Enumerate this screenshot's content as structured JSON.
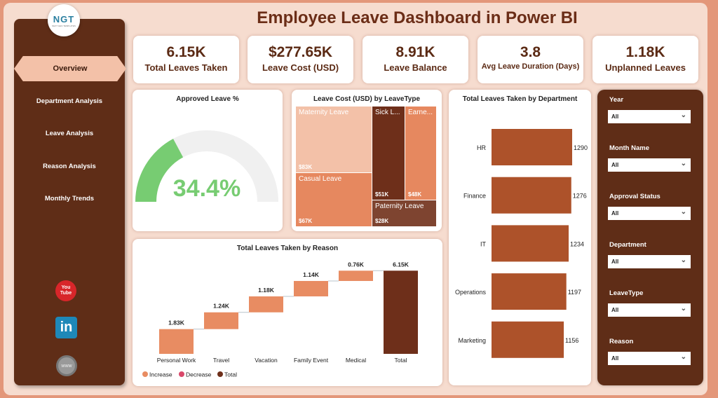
{
  "title": "Employee Leave Dashboard in Power BI",
  "logo": {
    "text": "NGT",
    "sub": "NEXT GEN TEMPLATES"
  },
  "nav": [
    {
      "label": "Overview",
      "active": true
    },
    {
      "label": "Department Analysis"
    },
    {
      "label": "Leave Analysis"
    },
    {
      "label": "Reason Analysis"
    },
    {
      "label": "Monthly Trends"
    }
  ],
  "social": {
    "youtube": "You Tube",
    "linkedin": "in",
    "web": "www"
  },
  "kpis": [
    {
      "value": "6.15K",
      "label": "Total Leaves Taken"
    },
    {
      "value": "$277.65K",
      "label": "Leave Cost (USD)"
    },
    {
      "value": "8.91K",
      "label": "Leave Balance"
    },
    {
      "value": "3.8",
      "label": "Avg Leave Duration (Days)"
    },
    {
      "value": "1.18K",
      "label": "Unplanned Leaves"
    }
  ],
  "gauge": {
    "title": "Approved Leave %",
    "value": 34.4,
    "label": "34.4%",
    "color": "#77cc72",
    "track": "#f0f0f0"
  },
  "treemap": {
    "title": "Leave Cost (USD) by LeaveType",
    "items": [
      {
        "name": "Maternity Leave",
        "value": "$83K",
        "color": "#f3c1a8"
      },
      {
        "name": "Casual Leave",
        "value": "$67K",
        "color": "#e6885f"
      },
      {
        "name": "Sick L...",
        "value": "$51K",
        "color": "#6e2f1a"
      },
      {
        "name": "Earne...",
        "value": "$48K",
        "color": "#e6885f"
      },
      {
        "name": "Paternity Leave",
        "value": "$28K",
        "color": "#7e4430"
      }
    ]
  },
  "chart_data": [
    {
      "type": "bar",
      "title": "Total Leaves Taken by Department",
      "orientation": "horizontal",
      "categories": [
        "HR",
        "Finance",
        "IT",
        "Operations",
        "Marketing"
      ],
      "values": [
        1290,
        1276,
        1234,
        1197,
        1156
      ],
      "color": "#ad522a"
    },
    {
      "type": "waterfall",
      "title": "Total Leaves Taken by Reason",
      "categories": [
        "Personal Work",
        "Travel",
        "Vacation",
        "Family Event",
        "Medical",
        "Total"
      ],
      "values": [
        1.83,
        1.24,
        1.18,
        1.14,
        0.76,
        6.15
      ],
      "labels": [
        "1.83K",
        "1.24K",
        "1.18K",
        "1.14K",
        "0.76K",
        "6.15K"
      ],
      "unit": "K",
      "legend": [
        {
          "name": "Increase",
          "color": "#e88c62"
        },
        {
          "name": "Decrease",
          "color": "#d9486a"
        },
        {
          "name": "Total",
          "color": "#6e2f1a"
        }
      ]
    }
  ],
  "slicers": [
    {
      "label": "Year",
      "value": "All"
    },
    {
      "label": "Month Name",
      "value": "All"
    },
    {
      "label": "Approval Status",
      "value": "All"
    },
    {
      "label": "Department",
      "value": "All"
    },
    {
      "label": "LeaveType",
      "value": "All"
    },
    {
      "label": "Reason",
      "value": "All"
    }
  ]
}
